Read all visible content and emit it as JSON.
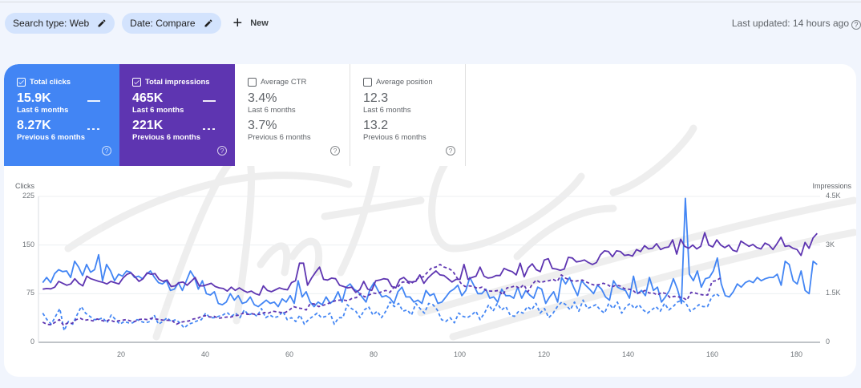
{
  "filters": {
    "search_type": "Search type: Web",
    "date": "Date: Compare",
    "new_label": "New"
  },
  "last_updated": "Last updated: 14 hours ago",
  "metrics": [
    {
      "key": "clicks",
      "label": "Total clicks",
      "checked": true,
      "current": "15.9K",
      "current_label": "Last 6 months",
      "previous": "8.27K",
      "previous_label": "Previous 6 months",
      "color": "#4285f4"
    },
    {
      "key": "impr",
      "label": "Total impressions",
      "checked": true,
      "current": "465K",
      "current_label": "Last 6 months",
      "previous": "221K",
      "previous_label": "Previous 6 months",
      "color": "#5e35b1"
    },
    {
      "key": "ctr",
      "label": "Average CTR",
      "checked": false,
      "current": "3.4%",
      "current_label": "Last 6 months",
      "previous": "3.7%",
      "previous_label": "Previous 6 months"
    },
    {
      "key": "pos",
      "label": "Average position",
      "checked": false,
      "current": "12.3",
      "current_label": "Last 6 months",
      "previous": "13.2",
      "previous_label": "Previous 6 months"
    }
  ],
  "watermark": "Amr Elshenawy",
  "chart_data": {
    "type": "line",
    "title": "",
    "xlabel": "",
    "ylabel": "Clicks",
    "y2label": "Impressions",
    "ylim": [
      0,
      225
    ],
    "y2lim": [
      0,
      4500
    ],
    "yticks": [
      "0",
      "75",
      "150",
      "225"
    ],
    "y2ticks": [
      "0",
      "1.5K",
      "3K",
      "4.5K"
    ],
    "xticks": [
      20,
      40,
      60,
      80,
      100,
      120,
      140,
      160,
      180
    ],
    "xlim": [
      1,
      185
    ],
    "grid": true,
    "series": [
      {
        "name": "Clicks (Last 6 months)",
        "axis": "left",
        "style": "solid",
        "color": "#4285f4",
        "values": [
          92,
          100,
          92,
          106,
          112,
          109,
          110,
          100,
          125,
          116,
          103,
          120,
          108,
          112,
          135,
          95,
          120,
          110,
          95,
          105,
          102,
          110,
          108,
          100,
          102,
          98,
          105,
          110,
          100,
          92,
          90,
          95,
          80,
          82,
          92,
          80,
          95,
          110,
          100,
          82,
          95,
          75,
          73,
          78,
          60,
          58,
          62,
          75,
          65,
          72,
          60,
          62,
          70,
          58,
          55,
          60,
          65,
          60,
          62,
          55,
          67,
          62,
          72,
          60,
          95,
          70,
          78,
          62,
          55,
          62,
          58,
          70,
          60,
          65,
          78,
          62,
          85,
          90,
          82,
          78,
          70,
          62,
          82,
          92,
          80,
          70,
          72,
          68,
          60,
          78,
          85,
          70,
          70,
          62,
          65,
          60,
          80,
          72,
          75,
          60,
          62,
          70,
          78,
          82,
          88,
          72,
          80,
          100,
          88,
          75,
          75,
          82,
          68,
          70,
          62,
          82,
          72,
          72,
          68,
          85,
          68,
          80,
          73,
          68,
          85,
          82,
          60,
          70,
          78,
          62,
          100,
          90,
          100,
          85,
          72,
          95,
          88,
          82,
          75,
          88,
          82,
          70,
          65,
          95,
          85,
          82,
          80,
          68,
          102,
          75,
          80,
          72,
          100,
          80,
          85,
          62,
          70,
          80,
          98,
          82,
          60,
          222,
          105,
          95,
          110,
          85,
          98,
          100,
          110,
          130,
          90,
          72,
          70,
          78,
          90,
          85,
          92,
          95,
          92,
          100,
          95,
          98,
          100,
          100,
          105,
          88,
          125,
          120,
          95,
          90,
          110,
          80,
          75,
          125,
          120
        ]
      },
      {
        "name": "Clicks (Previous 6 months)",
        "axis": "left",
        "style": "dashed",
        "color": "#4285f4",
        "values": [
          45,
          35,
          28,
          40,
          52,
          18,
          32,
          28,
          42,
          55,
          45,
          40,
          35,
          35,
          38,
          30,
          42,
          35,
          28,
          32,
          30,
          30,
          35,
          32,
          30,
          32,
          42,
          28,
          32,
          38,
          32,
          35,
          30,
          22,
          28,
          30,
          33,
          35,
          45,
          38,
          38,
          40,
          42,
          46,
          40,
          45,
          38,
          50,
          42,
          45,
          40,
          52,
          38,
          42,
          38,
          40,
          48,
          35,
          38,
          32,
          42,
          28,
          35,
          40,
          45,
          38,
          40,
          45,
          28,
          38,
          38,
          58,
          52,
          48,
          38,
          50,
          55,
          42,
          48,
          38,
          48,
          62,
          55,
          60,
          48,
          50,
          42,
          60,
          52,
          45,
          60,
          58,
          50,
          35,
          32,
          38,
          30,
          45,
          40,
          38,
          42,
          48,
          35,
          45,
          58,
          48,
          60,
          50,
          55,
          42,
          40,
          48,
          45,
          55,
          50,
          60,
          45,
          52,
          38,
          45,
          55,
          62,
          58,
          50,
          62,
          48,
          65,
          52,
          55,
          58,
          50,
          45,
          60,
          52,
          62,
          45,
          55,
          60,
          52,
          58,
          50,
          45,
          50,
          55,
          48,
          60,
          50,
          55,
          62,
          65,
          60,
          48,
          52,
          58,
          55,
          55,
          70,
          75,
          70
        ]
      },
      {
        "name": "Impressions (Last 6 months)",
        "axis": "right",
        "style": "solid",
        "color": "#5e35b1",
        "values": [
          1640,
          1660,
          1650,
          1700,
          1880,
          1820,
          1760,
          1800,
          1960,
          1820,
          1740,
          2040,
          1960,
          1920,
          1880,
          1850,
          1800,
          1880,
          1840,
          1800,
          1980,
          2100,
          2140,
          2020,
          1880,
          1960,
          2140,
          2100,
          2120,
          1940,
          1880,
          1920,
          1720,
          1740,
          1840,
          1860,
          1760,
          1880,
          2000,
          1740,
          1740,
          1780,
          1820,
          1720,
          1680,
          1660,
          1580,
          1700,
          1600,
          1680,
          1600,
          1540,
          1580,
          1500,
          1460,
          1740,
          1600,
          1560,
          1620,
          1680,
          1640,
          1620,
          1840,
          1900,
          2440,
          2440,
          1760,
          1980,
          2160,
          2320,
          1940,
          1920,
          1980,
          1960,
          1760,
          1720,
          1680,
          1700,
          1540,
          1620,
          1880,
          1640,
          1600,
          1900,
          1920,
          1960,
          1940,
          1720,
          1680,
          1940,
          2000,
          1880,
          1860,
          1880,
          2080,
          1820,
          1980,
          2100,
          2200,
          2080,
          2060,
          1960,
          1860,
          1940,
          1940,
          2400,
          1940,
          2000,
          2040,
          2320,
          2040,
          1980,
          2000,
          2060,
          2060,
          2280,
          2220,
          2180,
          2080,
          2440,
          2020,
          2300,
          2420,
          2240,
          2180,
          2540,
          2580,
          2280,
          2260,
          2220,
          2260,
          2620,
          2600,
          2480,
          2500,
          2540,
          2460,
          2400,
          2460,
          2700,
          2820,
          2800,
          2640,
          2820,
          2800,
          2680,
          2700,
          2660,
          2860,
          2800,
          2980,
          2880,
          2900,
          3040,
          2860,
          2920,
          2940,
          3160,
          2720,
          3180,
          2960,
          2900,
          3000,
          2880,
          2960,
          3380,
          3000,
          2940,
          3160,
          3000,
          2920,
          3000,
          2840,
          2800,
          3120,
          3040,
          2960,
          3020,
          2920,
          2880,
          3060,
          3000,
          2860,
          3040,
          3240,
          2960,
          2980,
          2900,
          2860,
          2680,
          3080,
          2900,
          3220,
          3360
        ]
      },
      {
        "name": "Impressions (Previous 6 months)",
        "axis": "right",
        "style": "dashed",
        "color": "#5e35b1",
        "values": [
          620,
          560,
          540,
          620,
          700,
          520,
          600,
          580,
          700,
          740,
          680,
          700,
          660,
          720,
          680,
          640,
          700,
          640,
          660,
          680,
          700,
          660,
          640,
          700,
          720,
          700,
          740,
          720,
          700,
          680,
          680,
          660,
          560,
          620,
          640,
          660,
          720,
          740,
          800,
          820,
          780,
          800,
          740,
          760,
          780,
          780,
          820,
          840,
          900,
          860,
          880,
          860,
          860,
          920,
          900,
          960,
          940,
          920,
          920,
          1000,
          1100,
          1060,
          1040,
          1000,
          1200,
          1180,
          1100,
          1140,
          1180,
          1240,
          1280,
          1300,
          1300,
          1280,
          1360,
          1380,
          1500,
          1400,
          1460,
          1520,
          1500,
          1560,
          1600,
          1540,
          1700,
          1720,
          1860,
          1860,
          1800,
          1900,
          2000,
          2020,
          2160,
          2300,
          2320,
          2400,
          2320,
          2280,
          2200,
          2000,
          1820,
          1720,
          1740,
          1720,
          1660,
          1700,
          1600,
          1580,
          1580,
          1600,
          1460,
          1680,
          1700,
          1740,
          1660,
          1780,
          1560,
          1780,
          1920,
          1840,
          1880,
          1900,
          1940,
          1880,
          2080,
          1980,
          1920,
          1880,
          1900,
          1920,
          1860,
          1800,
          1760,
          1780,
          1820,
          1780,
          1700,
          1760,
          1740,
          1660,
          1640,
          1620,
          1500,
          1540,
          1600,
          1520,
          1520,
          1460,
          1540,
          1500,
          1380,
          1420,
          1400,
          1380,
          1300,
          1540,
          1520,
          1480,
          1460,
          1460,
          1880,
          1900,
          1980
        ]
      }
    ]
  }
}
